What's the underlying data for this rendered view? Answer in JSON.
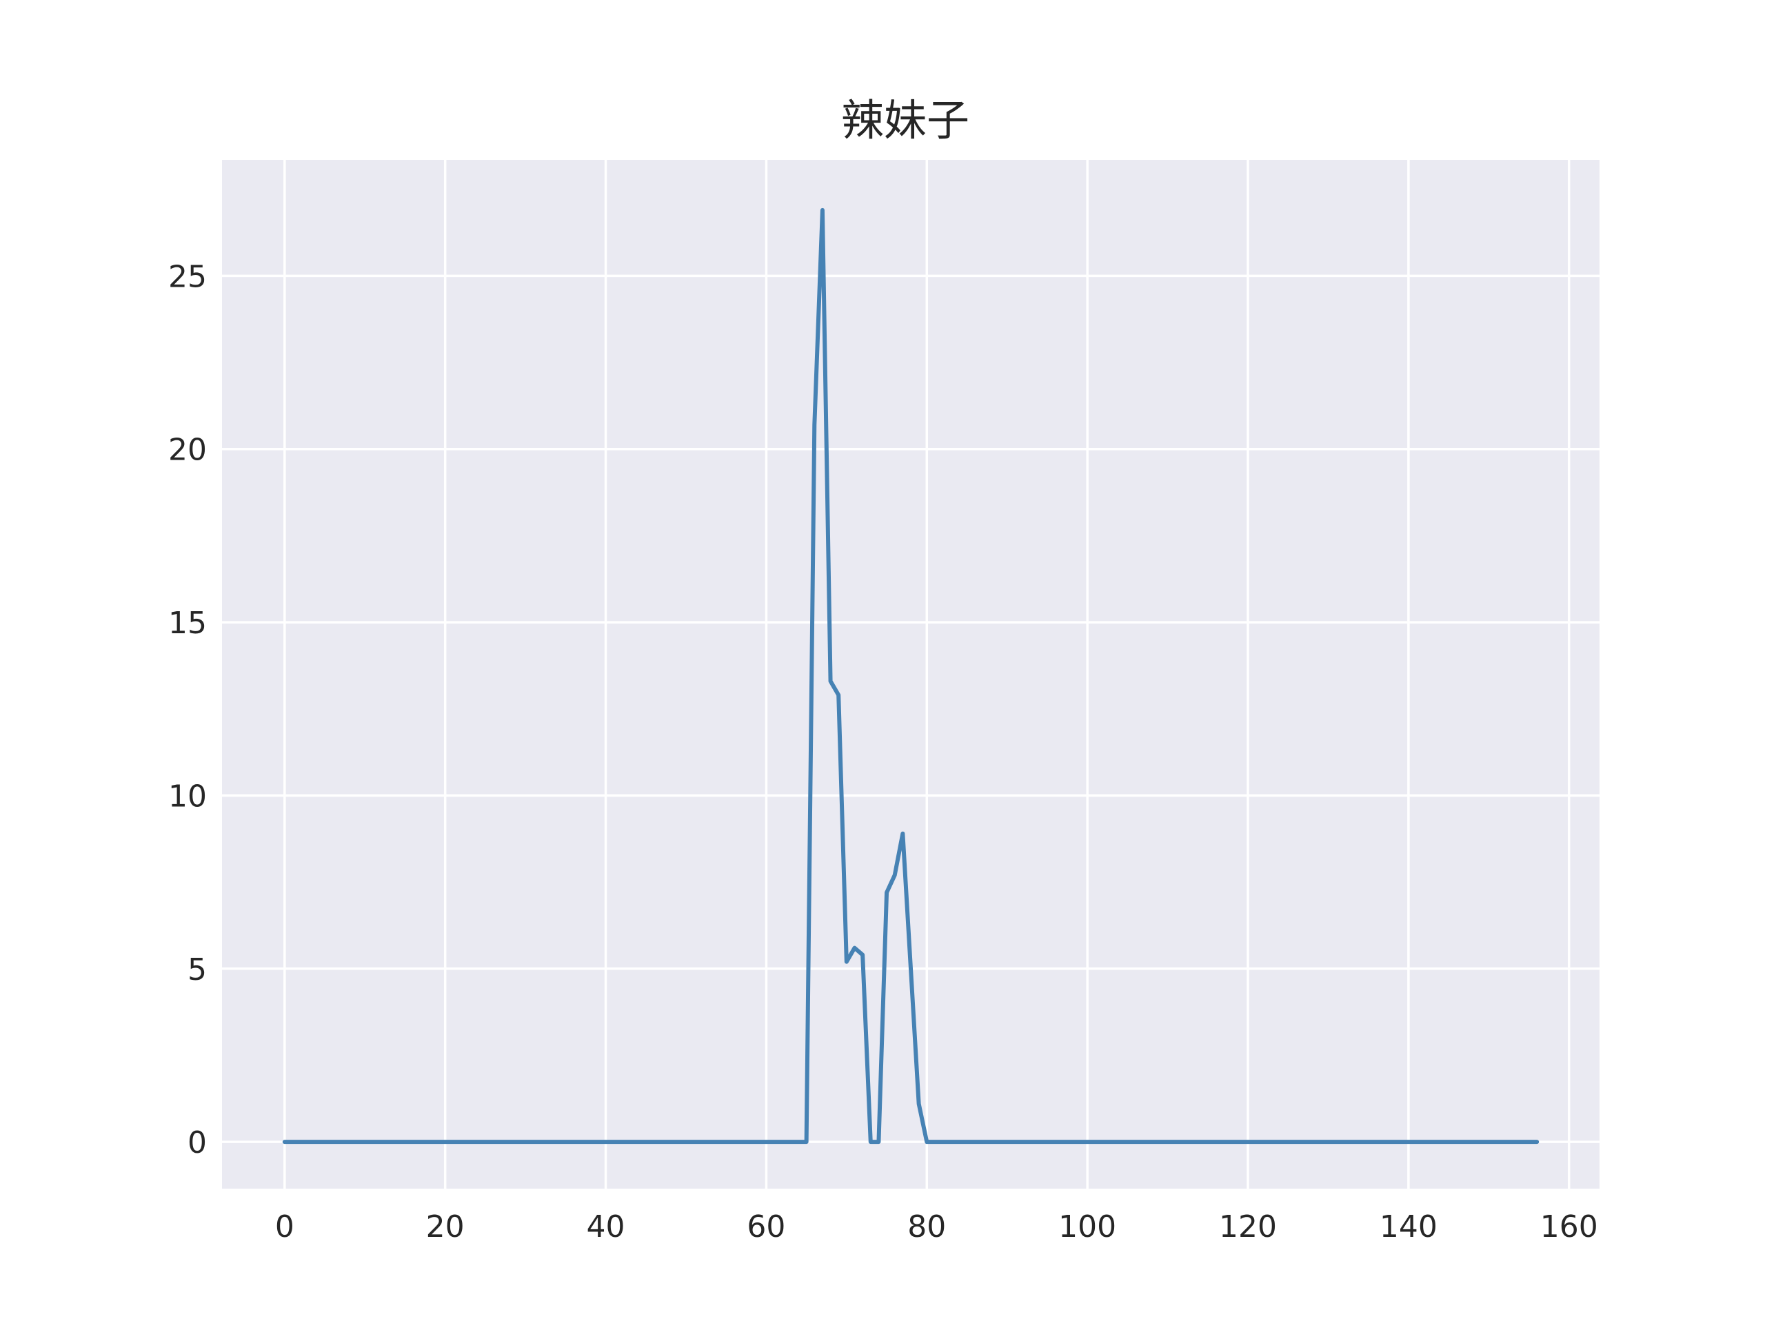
{
  "chart_data": {
    "type": "line",
    "title": "辣妹子",
    "xlabel": "",
    "ylabel": "",
    "xlim": [
      -7.8,
      163.8
    ],
    "ylim": [
      -1.35,
      28.35
    ],
    "x_ticks": [
      0,
      20,
      40,
      60,
      80,
      100,
      120,
      140,
      160
    ],
    "y_ticks": [
      0,
      5,
      10,
      15,
      20,
      25
    ],
    "grid": true,
    "legend": "none",
    "colors": {
      "plot_background": "#eaeaf2",
      "grid": "#ffffff",
      "line": "#4682b4",
      "text": "#262626"
    },
    "series": [
      {
        "x": [
          0,
          10,
          20,
          30,
          40,
          50,
          60,
          65,
          66,
          67,
          68,
          69,
          70,
          71,
          72,
          73,
          74,
          75,
          76,
          77,
          78,
          79,
          80,
          90,
          100,
          110,
          120,
          130,
          140,
          150,
          156
        ],
        "y": [
          0,
          0,
          0,
          0,
          0,
          0,
          0,
          0,
          20.7,
          26.9,
          13.3,
          12.9,
          5.2,
          5.6,
          5.4,
          0,
          0,
          7.2,
          7.7,
          8.9,
          5.0,
          1.1,
          0,
          0,
          0,
          0,
          0,
          0,
          0,
          0,
          0
        ]
      }
    ]
  }
}
